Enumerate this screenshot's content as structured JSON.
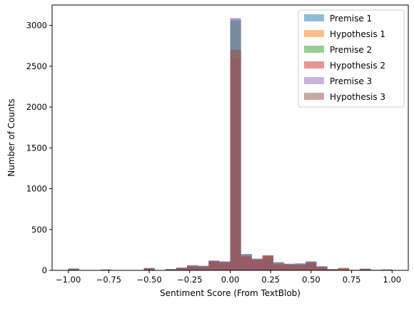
{
  "chart_data": {
    "type": "bar",
    "subtype": "overlaid-histogram",
    "title": "",
    "xlabel": "Sentiment Score (From TextBlob)",
    "ylabel": "Number of Counts",
    "xlim": [
      -1.1,
      1.1
    ],
    "ylim": [
      0,
      3250
    ],
    "xticks": [
      -1.0,
      -0.75,
      -0.5,
      -0.25,
      0.0,
      0.25,
      0.5,
      0.75,
      1.0
    ],
    "xtick_labels": [
      "−1.00",
      "−0.75",
      "−0.50",
      "−0.25",
      "0.00",
      "0.25",
      "0.50",
      "0.75",
      "1.00"
    ],
    "yticks": [
      0,
      500,
      1000,
      1500,
      2000,
      2500,
      3000
    ],
    "ytick_labels": [
      "0",
      "500",
      "1000",
      "1500",
      "2000",
      "2500",
      "3000"
    ],
    "grid": false,
    "legend_position": "top-right",
    "bin_edges": [
      -1.0,
      -0.9333,
      -0.8667,
      -0.8,
      -0.7333,
      -0.6667,
      -0.6,
      -0.5333,
      -0.4667,
      -0.4,
      -0.3333,
      -0.2667,
      -0.2,
      -0.1333,
      -0.0667,
      0.0,
      0.0667,
      0.1333,
      0.2,
      0.2667,
      0.3333,
      0.4,
      0.4667,
      0.5333,
      0.6,
      0.6667,
      0.7333,
      0.8,
      0.8667,
      0.9333,
      1.0
    ],
    "series": [
      {
        "name": "Premise 1",
        "color": "#1f77b4",
        "values": [
          20,
          0,
          0,
          10,
          0,
          0,
          0,
          30,
          0,
          15,
          35,
          60,
          55,
          120,
          110,
          3080,
          200,
          140,
          170,
          100,
          80,
          85,
          110,
          50,
          15,
          10,
          5,
          20,
          5,
          10
        ]
      },
      {
        "name": "Hypothesis 1",
        "color": "#ff7f0e",
        "values": [
          10,
          0,
          0,
          5,
          0,
          0,
          0,
          20,
          0,
          10,
          25,
          50,
          45,
          110,
          95,
          2700,
          170,
          130,
          185,
          75,
          70,
          65,
          95,
          40,
          10,
          30,
          5,
          15,
          5,
          5
        ]
      },
      {
        "name": "Premise 2",
        "color": "#2ca02c",
        "values": [
          20,
          0,
          0,
          10,
          0,
          0,
          0,
          25,
          0,
          15,
          30,
          60,
          55,
          115,
          105,
          3050,
          190,
          140,
          165,
          95,
          80,
          80,
          105,
          45,
          15,
          10,
          5,
          20,
          5,
          10
        ]
      },
      {
        "name": "Hypothesis 2",
        "color": "#d62728",
        "values": [
          10,
          0,
          0,
          5,
          0,
          0,
          0,
          20,
          0,
          10,
          25,
          50,
          45,
          110,
          95,
          2600,
          170,
          130,
          180,
          75,
          70,
          65,
          95,
          40,
          10,
          25,
          5,
          15,
          5,
          5
        ]
      },
      {
        "name": "Premise 3",
        "color": "#9467bd",
        "values": [
          25,
          0,
          0,
          10,
          0,
          0,
          0,
          30,
          0,
          15,
          35,
          65,
          55,
          120,
          110,
          3090,
          200,
          145,
          170,
          100,
          80,
          85,
          110,
          50,
          15,
          10,
          5,
          20,
          5,
          10
        ]
      },
      {
        "name": "Hypothesis 3",
        "color": "#8c564b",
        "values": [
          10,
          0,
          0,
          5,
          0,
          0,
          0,
          20,
          0,
          10,
          25,
          50,
          45,
          110,
          95,
          2700,
          170,
          130,
          185,
          75,
          70,
          65,
          95,
          40,
          10,
          30,
          5,
          15,
          5,
          5
        ]
      }
    ]
  }
}
